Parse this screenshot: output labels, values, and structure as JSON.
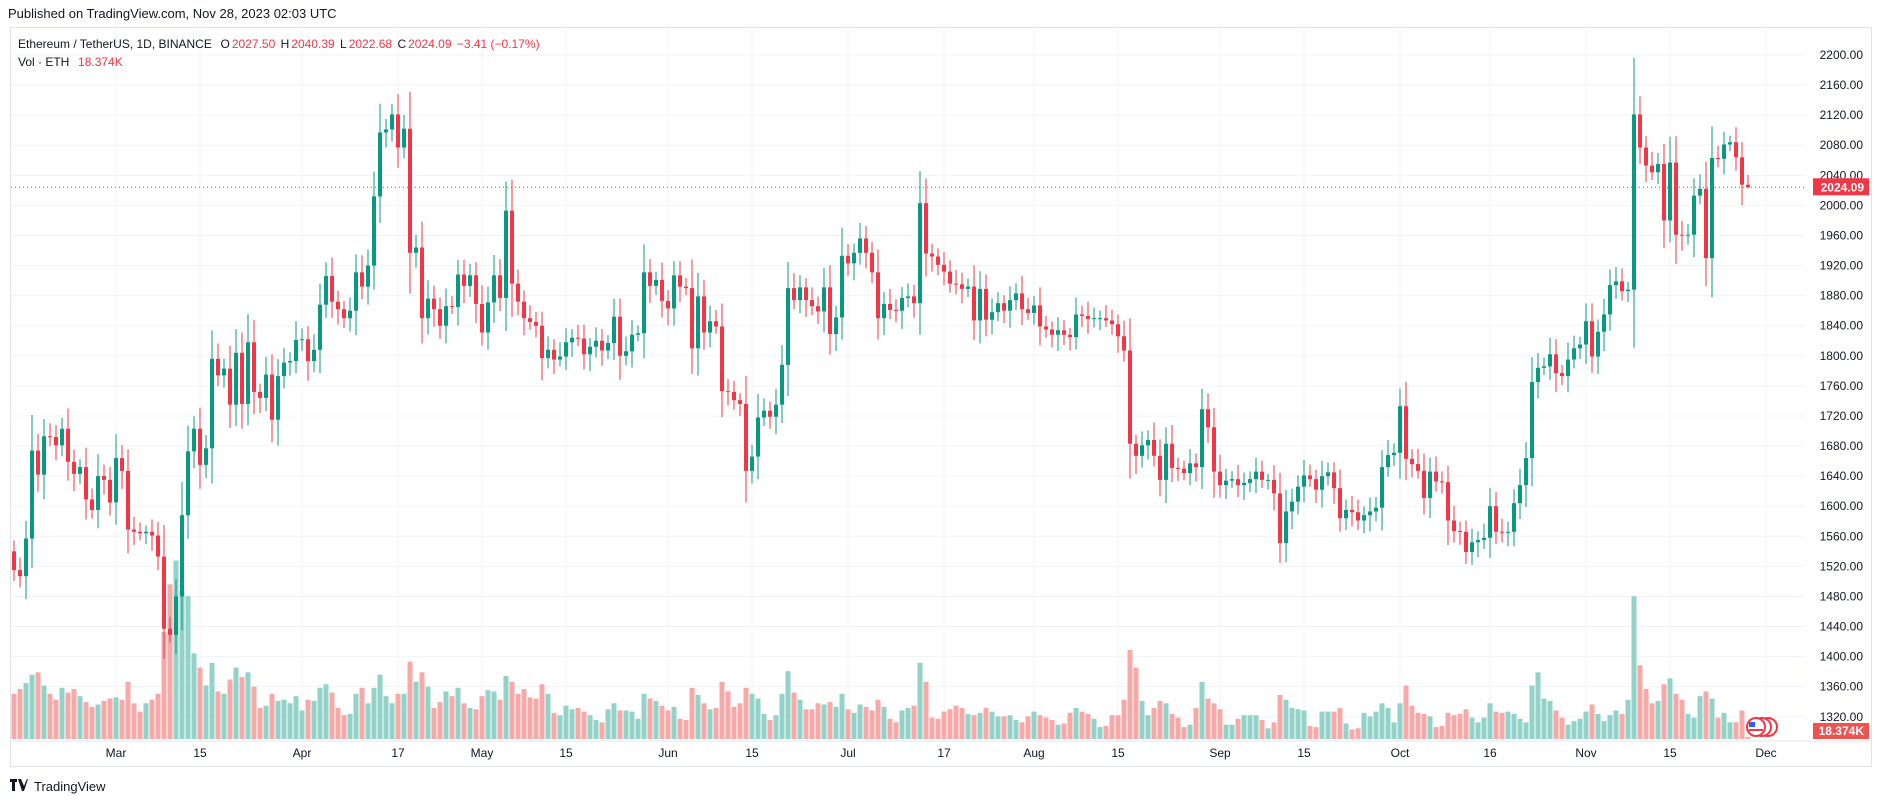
{
  "published": "Published on TradingView.com, Nov 28, 2023 02:03 UTC",
  "legend": {
    "symbol": "Ethereum / TetherUS, 1D, BINANCE",
    "o_label": "O",
    "open": "2027.50",
    "h_label": "H",
    "high": "2040.39",
    "l_label": "L",
    "low": "2022.68",
    "c_label": "C",
    "close": "2024.09",
    "change": "−3.41 (−0.17%)",
    "vol_label": "Vol · ETH",
    "vol_value": "18.374K"
  },
  "brand": "TradingView",
  "colors": {
    "up": "#089981",
    "down": "#f23645",
    "vol_up": "#92d2c8",
    "vol_down": "#f7a9a7",
    "grid": "#f0f3fa"
  },
  "chart_data": {
    "type": "candlestick",
    "title": "Ethereum / TetherUS, 1D, BINANCE",
    "start_date": "2023-02-12",
    "end_date": "2023-11-28",
    "first_open": 1540,
    "last_candle": {
      "open": 2027.5,
      "high": 2040.39,
      "low": 2022.68,
      "close": 2024.09
    },
    "ylim": [
      1320,
      2200
    ],
    "y_ticks": [
      "2200.00",
      "2160.00",
      "2120.00",
      "2080.00",
      "2040.00",
      "2000.00",
      "1960.00",
      "1920.00",
      "1880.00",
      "1840.00",
      "1800.00",
      "1760.00",
      "1720.00",
      "1680.00",
      "1640.00",
      "1600.00",
      "1560.00",
      "1520.00",
      "1480.00",
      "1440.00",
      "1400.00",
      "1360.00",
      "1320.00"
    ],
    "x_ticks": [
      {
        "label": "Mar",
        "day": 17
      },
      {
        "label": "15",
        "day": 31
      },
      {
        "label": "Apr",
        "day": 48
      },
      {
        "label": "17",
        "day": 64
      },
      {
        "label": "May",
        "day": 78
      },
      {
        "label": "15",
        "day": 92
      },
      {
        "label": "Jun",
        "day": 109
      },
      {
        "label": "15",
        "day": 123
      },
      {
        "label": "Jul",
        "day": 139
      },
      {
        "label": "17",
        "day": 155
      },
      {
        "label": "Aug",
        "day": 170
      },
      {
        "label": "15",
        "day": 184
      },
      {
        "label": "Sep",
        "day": 201
      },
      {
        "label": "15",
        "day": 215
      },
      {
        "label": "Oct",
        "day": 231
      },
      {
        "label": "16",
        "day": 246
      },
      {
        "label": "Nov",
        "day": 262
      },
      {
        "label": "15",
        "day": 276
      },
      {
        "label": "Dec",
        "day": 292
      }
    ],
    "last_price_label": "2024.09",
    "last_volume_label": "18.374K",
    "closes": [
      1515,
      1507,
      1557,
      1674,
      1642,
      1693,
      1692,
      1681,
      1703,
      1659,
      1643,
      1652,
      1609,
      1595,
      1640,
      1635,
      1605,
      1664,
      1647,
      1569,
      1566,
      1564,
      1566,
      1561,
      1533,
      1437,
      1429,
      1480,
      1588,
      1673,
      1703,
      1655,
      1677,
      1796,
      1774,
      1783,
      1735,
      1804,
      1736,
      1818,
      1752,
      1744,
      1775,
      1715,
      1773,
      1791,
      1793,
      1821,
      1822,
      1793,
      1808,
      1868,
      1906,
      1872,
      1862,
      1850,
      1860,
      1911,
      1892,
      1920,
      2012,
      2097,
      2101,
      2121,
      2077,
      2102,
      1937,
      1944,
      1850,
      1876,
      1862,
      1840,
      1866,
      1865,
      1908,
      1893,
      1907,
      1869,
      1831,
      1871,
      1907,
      1877,
      1993,
      1896,
      1872,
      1850,
      1845,
      1840,
      1797,
      1808,
      1795,
      1799,
      1818,
      1824,
      1823,
      1802,
      1812,
      1820,
      1807,
      1817,
      1852,
      1800,
      1806,
      1828,
      1830,
      1911,
      1893,
      1901,
      1873,
      1863,
      1907,
      1892,
      1890,
      1810,
      1879,
      1831,
      1846,
      1839,
      1753,
      1752,
      1741,
      1736,
      1647,
      1666,
      1718,
      1727,
      1719,
      1735,
      1788,
      1890,
      1874,
      1891,
      1874,
      1866,
      1859,
      1891,
      1829,
      1851,
      1933,
      1923,
      1937,
      1956,
      1937,
      1911,
      1850,
      1869,
      1861,
      1860,
      1877,
      1879,
      1870,
      2003,
      1936,
      1932,
      1921,
      1912,
      1896,
      1895,
      1889,
      1892,
      1847,
      1889,
      1848,
      1858,
      1870,
      1860,
      1874,
      1883,
      1862,
      1857,
      1867,
      1839,
      1835,
      1828,
      1834,
      1828,
      1825,
      1855,
      1853,
      1849,
      1850,
      1850,
      1847,
      1842,
      1826,
      1807,
      1683,
      1667,
      1681,
      1688,
      1667,
      1635,
      1683,
      1651,
      1650,
      1644,
      1657,
      1652,
      1729,
      1705,
      1646,
      1628,
      1634,
      1636,
      1628,
      1631,
      1636,
      1646,
      1635,
      1635,
      1617,
      1551,
      1593,
      1606,
      1626,
      1641,
      1636,
      1622,
      1640,
      1645,
      1624,
      1584,
      1595,
      1592,
      1581,
      1588,
      1593,
      1598,
      1652,
      1668,
      1671,
      1733,
      1663,
      1656,
      1647,
      1611,
      1646,
      1633,
      1632,
      1581,
      1567,
      1566,
      1539,
      1552,
      1555,
      1558,
      1600,
      1566,
      1565,
      1566,
      1604,
      1628,
      1664,
      1765,
      1784,
      1786,
      1802,
      1777,
      1773,
      1795,
      1810,
      1815,
      1846,
      1799,
      1832,
      1855,
      1894,
      1899,
      1886,
      1888,
      2121,
      2077,
      2053,
      2044,
      2055,
      1980,
      2057,
      1961,
      1960,
      1961,
      2013,
      2022,
      1930,
      2063,
      2062,
      2081,
      2084,
      2064,
      2027.5,
      2024.09
    ],
    "volumes_k": [
      380,
      420,
      470,
      540,
      560,
      450,
      380,
      330,
      430,
      390,
      420,
      360,
      310,
      270,
      290,
      320,
      340,
      350,
      330,
      480,
      300,
      230,
      300,
      330,
      380,
      900,
      1300,
      1500,
      1250,
      1200,
      720,
      600,
      450,
      640,
      400,
      380,
      500,
      600,
      520,
      560,
      440,
      260,
      280,
      380,
      320,
      330,
      300,
      360,
      240,
      330,
      320,
      430,
      460,
      390,
      260,
      200,
      210,
      380,
      430,
      300,
      430,
      540,
      360,
      300,
      380,
      380,
      650,
      480,
      560,
      440,
      260,
      310,
      400,
      360,
      430,
      300,
      260,
      250,
      360,
      410,
      400,
      330,
      530,
      480,
      380,
      420,
      350,
      340,
      460,
      380,
      220,
      200,
      280,
      250,
      260,
      230,
      200,
      160,
      140,
      250,
      300,
      240,
      240,
      230,
      170,
      380,
      340,
      320,
      280,
      240,
      270,
      170,
      160,
      430,
      370,
      300,
      250,
      260,
      480,
      400,
      270,
      300,
      430,
      380,
      340,
      210,
      160,
      200,
      380,
      570,
      390,
      330,
      250,
      250,
      300,
      290,
      310,
      270,
      380,
      250,
      220,
      290,
      270,
      240,
      330,
      270,
      170,
      140,
      240,
      260,
      280,
      640,
      480,
      180,
      170,
      230,
      250,
      280,
      260,
      210,
      200,
      220,
      260,
      230,
      190,
      190,
      200,
      160,
      140,
      190,
      230,
      200,
      180,
      160,
      120,
      130,
      220,
      260,
      230,
      210,
      170,
      100,
      110,
      200,
      200,
      330,
      750,
      600,
      320,
      200,
      260,
      320,
      300,
      210,
      180,
      100,
      120,
      260,
      480,
      340,
      300,
      250,
      120,
      120,
      170,
      200,
      200,
      200,
      160,
      90,
      140,
      370,
      330,
      260,
      250,
      240,
      110,
      100,
      230,
      230,
      230,
      260,
      130,
      80,
      90,
      220,
      190,
      230,
      300,
      260,
      140,
      300,
      450,
      280,
      220,
      210,
      190,
      100,
      110,
      220,
      200,
      210,
      250,
      180,
      140,
      180,
      300,
      230,
      220,
      230,
      210,
      170,
      140,
      450,
      560,
      340,
      320,
      240,
      180,
      120,
      150,
      170,
      230,
      290,
      210,
      150,
      200,
      240,
      210,
      330,
      1200,
      620,
      420,
      300,
      320,
      460,
      510,
      380,
      330,
      210,
      180,
      360,
      400,
      340,
      180,
      220,
      140,
      140,
      240,
      18.374
    ]
  }
}
